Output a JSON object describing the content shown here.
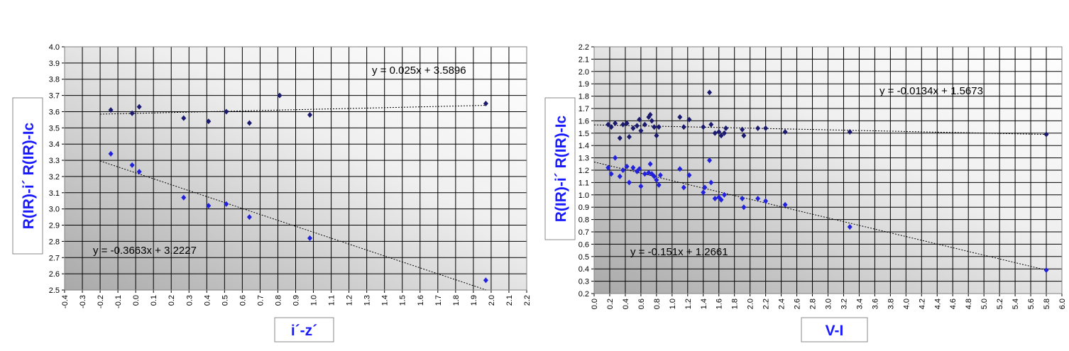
{
  "chart_data": [
    {
      "type": "scatter",
      "title": "",
      "xlabel": "i´-z´",
      "ylabel_lower": "R(IR)-i´",
      "ylabel_upper": "R(IR)-Ic",
      "xlim": [
        -0.4,
        2.2
      ],
      "ylim": [
        2.5,
        4.0
      ],
      "x_ticks": [
        "-0.4",
        "-0.3",
        "-0.2",
        "-0.1",
        "0.0",
        "0.1",
        "0.2",
        "0.3",
        "0.4",
        "0.5",
        "0.6",
        "0.7",
        "0.8",
        "0.9",
        "1.0",
        "1.1",
        "1.2",
        "1.3",
        "1.4",
        "1.5",
        "1.6",
        "1.7",
        "1.8",
        "1.9",
        "2.0",
        "2.1",
        "2.2"
      ],
      "y_ticks": [
        "2.5",
        "2.6",
        "2.7",
        "2.8",
        "2.9",
        "3.0",
        "3.1",
        "3.2",
        "3.3",
        "3.4",
        "3.5",
        "3.6",
        "3.7",
        "3.8",
        "3.9",
        "4.0"
      ],
      "grid": true,
      "series": [
        {
          "color": "#1a1a6e",
          "points": [
            [
              -0.14,
              3.61
            ],
            [
              -0.02,
              3.59
            ],
            [
              0.02,
              3.63
            ],
            [
              0.27,
              3.56
            ],
            [
              0.41,
              3.54
            ],
            [
              0.51,
              3.6
            ],
            [
              0.64,
              3.53
            ],
            [
              0.81,
              3.7
            ],
            [
              0.98,
              3.58
            ],
            [
              1.97,
              3.65
            ]
          ],
          "trendline": {
            "slope": 0.025,
            "intercept": 3.5896,
            "x_range": [
              -0.2,
              1.97
            ],
            "equation": "y = 0.025x + 3.5896"
          }
        },
        {
          "color": "#2222dd",
          "points": [
            [
              -0.14,
              3.34
            ],
            [
              -0.02,
              3.27
            ],
            [
              0.02,
              3.23
            ],
            [
              0.27,
              3.07
            ],
            [
              0.41,
              3.02
            ],
            [
              0.51,
              3.03
            ],
            [
              0.64,
              2.95
            ],
            [
              0.98,
              2.82
            ],
            [
              1.97,
              2.56
            ]
          ],
          "trendline": {
            "slope": -0.3663,
            "intercept": 3.2227,
            "x_range": [
              -0.2,
              1.97
            ],
            "equation": "y = -0.3663x + 3.2227"
          }
        }
      ]
    },
    {
      "type": "scatter",
      "title": "",
      "xlabel": "V-I",
      "ylabel_lower": "R(IR)-i´",
      "ylabel_upper": "R(IR)-Ic",
      "xlim": [
        0.0,
        6.0
      ],
      "ylim": [
        0.2,
        2.2
      ],
      "x_ticks": [
        "0.0",
        "0.2",
        "0.4",
        "0.6",
        "0.8",
        "1.0",
        "1.2",
        "1.4",
        "1.6",
        "1.8",
        "2.0",
        "2.2",
        "2.4",
        "2.6",
        "2.8",
        "3.0",
        "3.2",
        "3.4",
        "3.6",
        "3.8",
        "4.0",
        "4.2",
        "4.4",
        "4.6",
        "4.8",
        "5.0",
        "5.2",
        "5.4",
        "5.6",
        "5.8",
        "6.0"
      ],
      "y_ticks": [
        "0.2",
        "0.3",
        "0.4",
        "0.5",
        "0.6",
        "0.7",
        "0.8",
        "0.9",
        "1.0",
        "1.1",
        "1.2",
        "1.3",
        "1.4",
        "1.5",
        "1.6",
        "1.7",
        "1.8",
        "1.9",
        "2.0",
        "2.1",
        "2.2"
      ],
      "grid": true,
      "series": [
        {
          "color": "#1a1a6e",
          "points": [
            [
              0.18,
              1.57
            ],
            [
              0.22,
              1.55
            ],
            [
              0.27,
              1.58
            ],
            [
              0.33,
              1.46
            ],
            [
              0.37,
              1.57
            ],
            [
              0.42,
              1.58
            ],
            [
              0.45,
              1.47
            ],
            [
              0.5,
              1.54
            ],
            [
              0.55,
              1.56
            ],
            [
              0.58,
              1.61
            ],
            [
              0.6,
              1.52
            ],
            [
              0.65,
              1.57
            ],
            [
              0.7,
              1.63
            ],
            [
              0.72,
              1.65
            ],
            [
              0.74,
              1.6
            ],
            [
              0.77,
              1.55
            ],
            [
              0.8,
              1.48
            ],
            [
              0.83,
              1.55
            ],
            [
              1.1,
              1.63
            ],
            [
              1.15,
              1.55
            ],
            [
              1.22,
              1.61
            ],
            [
              1.4,
              1.55
            ],
            [
              1.48,
              1.83
            ],
            [
              1.5,
              1.57
            ],
            [
              1.55,
              1.5
            ],
            [
              1.6,
              1.51
            ],
            [
              1.63,
              1.48
            ],
            [
              1.67,
              1.5
            ],
            [
              1.69,
              1.54
            ],
            [
              1.9,
              1.53
            ],
            [
              1.92,
              1.48
            ],
            [
              2.1,
              1.54
            ],
            [
              2.2,
              1.54
            ],
            [
              2.45,
              1.51
            ],
            [
              3.28,
              1.51
            ],
            [
              5.8,
              1.49
            ]
          ],
          "trendline": {
            "slope": -0.0134,
            "intercept": 1.5673,
            "x_range": [
              0.0,
              5.8
            ],
            "equation": "y = -0.0134x + 1.5673"
          }
        },
        {
          "color": "#2222dd",
          "points": [
            [
              0.18,
              1.22
            ],
            [
              0.22,
              1.17
            ],
            [
              0.27,
              1.3
            ],
            [
              0.33,
              1.15
            ],
            [
              0.37,
              1.2
            ],
            [
              0.42,
              1.23
            ],
            [
              0.45,
              1.1
            ],
            [
              0.5,
              1.22
            ],
            [
              0.55,
              1.19
            ],
            [
              0.58,
              1.21
            ],
            [
              0.6,
              1.07
            ],
            [
              0.65,
              1.17
            ],
            [
              0.7,
              1.18
            ],
            [
              0.72,
              1.25
            ],
            [
              0.74,
              1.17
            ],
            [
              0.77,
              1.15
            ],
            [
              0.8,
              1.12
            ],
            [
              0.83,
              1.08
            ],
            [
              0.85,
              1.16
            ],
            [
              1.1,
              1.21
            ],
            [
              1.15,
              1.06
            ],
            [
              1.22,
              1.16
            ],
            [
              1.4,
              1.02
            ],
            [
              1.42,
              1.06
            ],
            [
              1.48,
              1.28
            ],
            [
              1.5,
              1.1
            ],
            [
              1.55,
              0.97
            ],
            [
              1.6,
              0.98
            ],
            [
              1.63,
              0.96
            ],
            [
              1.67,
              1.0
            ],
            [
              1.9,
              0.97
            ],
            [
              1.92,
              0.9
            ],
            [
              2.1,
              0.97
            ],
            [
              2.2,
              0.95
            ],
            [
              2.45,
              0.92
            ],
            [
              3.28,
              0.74
            ],
            [
              5.8,
              0.39
            ]
          ],
          "trendline": {
            "slope": -0.151,
            "intercept": 1.2661,
            "x_range": [
              0.0,
              5.8
            ],
            "equation": "y = -0.151x + 1.2661"
          }
        }
      ]
    }
  ]
}
